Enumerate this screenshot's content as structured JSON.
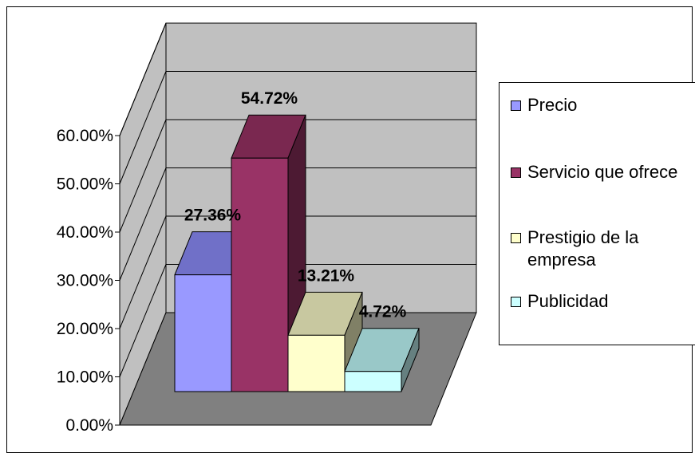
{
  "chart_data": {
    "type": "bar",
    "categories": [
      "Precio",
      "Servicio que ofrece",
      "Prestigio de la empresa",
      "Publicidad"
    ],
    "values": [
      27.36,
      54.72,
      13.21,
      4.72
    ],
    "data_labels": [
      "27.36%",
      "54.72%",
      "13.21%",
      "4.72%"
    ],
    "ylim": [
      0,
      60
    ],
    "yticks": [
      0,
      10,
      20,
      30,
      40,
      50,
      60
    ],
    "ytick_labels": [
      "0.00%",
      "10.00%",
      "20.00%",
      "30.00%",
      "40.00%",
      "50.00%",
      "60.00%"
    ],
    "grid": true,
    "three_d": true,
    "legend_position": "right",
    "legend": [
      "Precio",
      "Servicio que ofrece",
      "Prestigio de la empresa",
      "Publicidad"
    ],
    "colors": {
      "front": [
        "#9999FF",
        "#993366",
        "#FFFFCC",
        "#CCFFFF"
      ],
      "top": [
        "#7070C8",
        "#7A2850",
        "#C8C8A0",
        "#99C8C8"
      ],
      "side": [
        "#4D4D80",
        "#4D1A33",
        "#808066",
        "#668080"
      ],
      "back_wall": "#C0C0C0",
      "side_wall": "#C0C0C0",
      "floor": "#808080"
    }
  }
}
